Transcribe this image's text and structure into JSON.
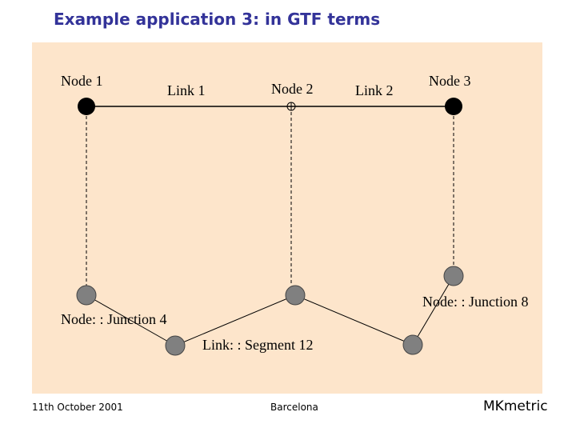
{
  "title": "Example application 3: in GTF terms",
  "diagram": {
    "labels": {
      "node1": "Node 1",
      "link1": "Link 1",
      "node2": "Node 2",
      "link2": "Link 2",
      "node3": "Node 3",
      "junction4": "Node: : Junction 4",
      "junction8": "Node: : Junction 8",
      "segment12": "Link: : Segment 12"
    },
    "colors": {
      "panel": "#fde5cb",
      "node": "#000000",
      "junction": "#808080",
      "line": "#000000"
    }
  },
  "footer": {
    "date": "11th October 2001",
    "place": "Barcelona",
    "brand": "MKmetric"
  }
}
